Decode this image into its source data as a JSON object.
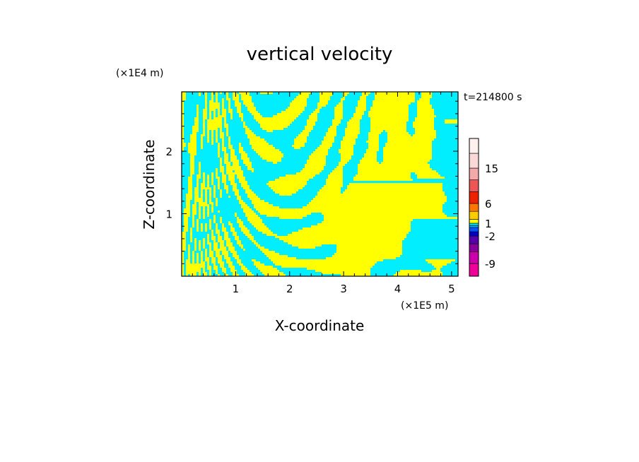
{
  "chart_data": {
    "type": "heatmap",
    "title": "vertical velocity",
    "xlabel": "X-coordinate",
    "ylabel": "Z-coordinate",
    "x_unit": "(×1E5 m)",
    "y_unit": "(×1E4 m)",
    "time_label": "t=214800 s",
    "xlim": [
      0,
      5.12
    ],
    "ylim": [
      0,
      2.95
    ],
    "xticks": [
      1,
      2,
      3,
      4,
      5
    ],
    "yticks": [
      1,
      2
    ],
    "colors": {
      "positive": "#ffff00",
      "negative": "#00eeff"
    },
    "colorbar": {
      "ticks": [
        "15",
        "6",
        "1",
        "-2",
        "-9"
      ],
      "levels": [
        -12,
        -9,
        -6,
        -4,
        -2,
        -1,
        0,
        0.5,
        1,
        2,
        4,
        6,
        9,
        12,
        15,
        20,
        25
      ],
      "colors": [
        "#ee0099",
        "#cc00aa",
        "#880099",
        "#5500aa",
        "#0000cc",
        "#0055ff",
        "#00aaff",
        "#00eeff",
        "#ffff00",
        "#ffcc00",
        "#ff7700",
        "#ee2200",
        "#ee5555",
        "#f4aaaa",
        "#fadad8",
        "#fff2ee"
      ]
    }
  }
}
